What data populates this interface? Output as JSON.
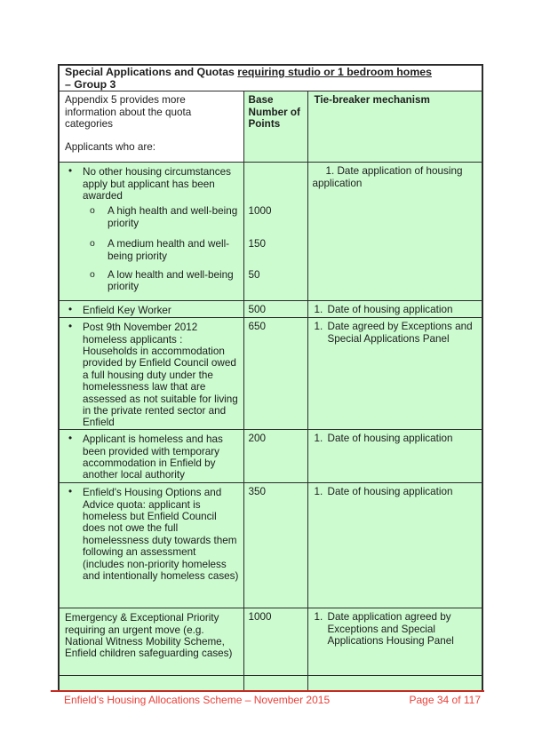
{
  "colors": {
    "cell_green": "#ccfbcf",
    "border": "#2c2c2c",
    "footer_red": "#e9413a",
    "line_red": "#c62a22"
  },
  "document": {
    "title": {
      "prefix": "Special Applications and Quotas ",
      "underlined": "requiring studio or 1 bedroom homes",
      "line2": "– Group 3"
    },
    "header": {
      "col1_intro": "Appendix 5 provides more information about the quota categories",
      "col1_sub": "Applicants who are:",
      "col2": "Base Number of Points",
      "col3": "Tie-breaker mechanism"
    },
    "rows": [
      {
        "type": "grouped",
        "bullet": "•",
        "intro": "No other housing circumstances apply but applicant has been awarded",
        "subs": [
          {
            "marker": "o",
            "text": "A high health and well-being priority",
            "points": "1000"
          },
          {
            "marker": "o",
            "text": "A medium health and well-being priority",
            "points": "150"
          },
          {
            "marker": "o",
            "text": "A low health and well-being priority",
            "points": "50"
          }
        ],
        "tie_plain": "1. Date application of housing application"
      },
      {
        "type": "simple",
        "bullet": "•",
        "text": "Enfield Key Worker",
        "points": "500",
        "tie_num": "1.",
        "tie_text": "Date of housing application"
      },
      {
        "type": "simple",
        "bullet": "•",
        "text": "Post 9th November 2012 homeless applicants : Households in accommodation provided by Enfield Council owed a full housing duty under the homelessness law that are assessed as not suitable for living in the private rented sector and Enfield",
        "points": "650",
        "tie_num": "1.",
        "tie_text": "Date agreed by Exceptions and Special Applications Panel"
      },
      {
        "type": "simple",
        "bullet": "•",
        "text": "Applicant is homeless and has been provided with temporary accommodation in Enfield by another local authority",
        "points": "200",
        "tie_num": "1.",
        "tie_text": "Date of housing application"
      },
      {
        "type": "simple",
        "bullet": "•",
        "text": "Enfield's Housing Options and Advice quota:  applicant is homeless but Enfield Council does not owe the full homelessness duty towards them following an assessment (includes non-priority homeless and intentionally homeless cases)",
        "points": "350",
        "tie_num": "1.",
        "tie_text": "Date of housing application"
      },
      {
        "type": "simple",
        "bullet": null,
        "text": "Emergency & Exceptional Priority requiring an urgent move (e.g. National Witness Mobility Scheme, Enfield children safeguarding cases)",
        "points": "1000",
        "tie_num": "1.",
        "tie_text": "Date application agreed by Exceptions and Special Applications Housing Panel"
      },
      {
        "type": "empty"
      }
    ],
    "footer": {
      "left": "Enfield's Housing Allocations Scheme – November 2015",
      "right": "Page 34 of 117"
    }
  }
}
